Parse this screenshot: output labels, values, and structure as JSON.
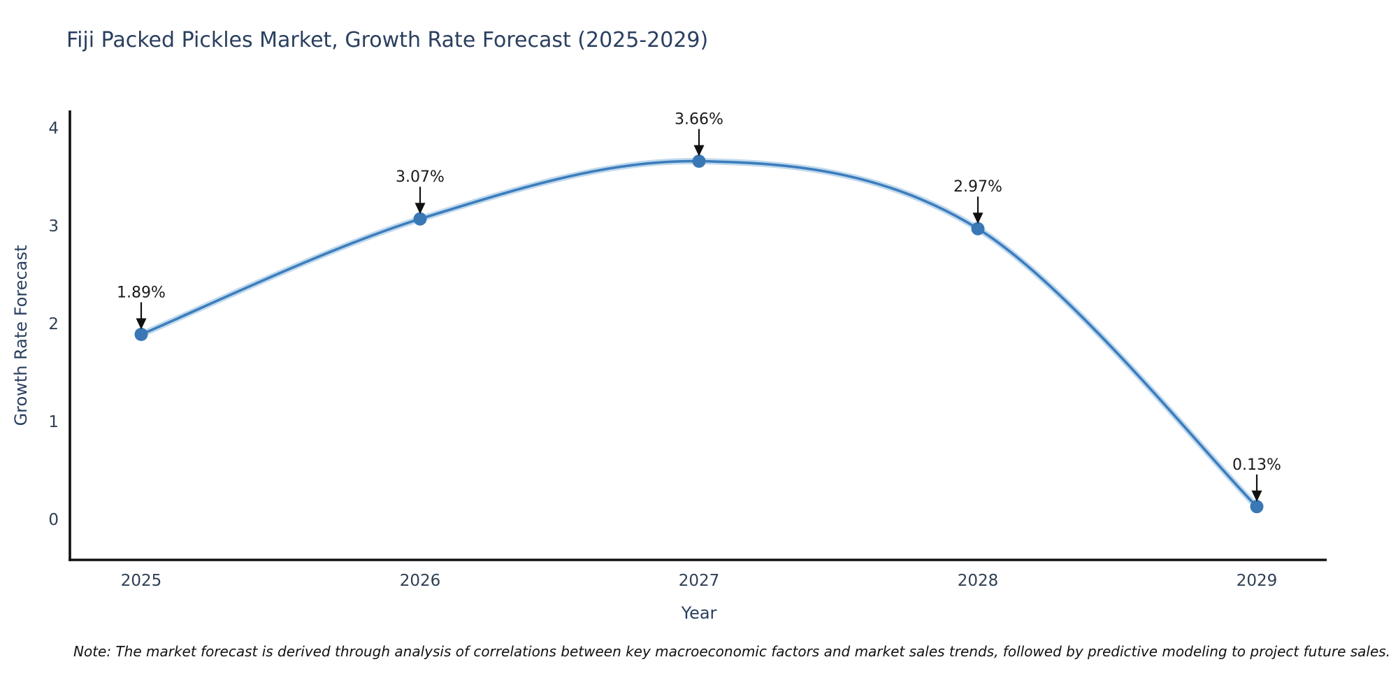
{
  "header": {
    "title": "Fiji Packed Pickles Market, Growth Rate Forecast (2025-2029)",
    "title_color": "#2a3f5f"
  },
  "chart_data": {
    "type": "line",
    "title": "Fiji Packed Pickles Market, Growth Rate Forecast (2025-2029)",
    "x": [
      2025,
      2026,
      2027,
      2028,
      2029
    ],
    "values": [
      1.89,
      3.07,
      3.66,
      2.97,
      0.13
    ],
    "point_labels": [
      "1.89%",
      "3.07%",
      "3.66%",
      "2.97%",
      "0.13%"
    ],
    "xticks": [
      "2025",
      "2026",
      "2027",
      "2028",
      "2029"
    ],
    "yticks": [
      0,
      1,
      2,
      3,
      4
    ],
    "xlabel": "Year",
    "ylabel": "Growth Rate Forecast",
    "ylim": [
      -0.4,
      4.2
    ],
    "grid": false,
    "legend": null,
    "annotation_style": "black-down-arrow-to-point",
    "line_color": "#3c7dbd",
    "line_glow_color": "#b9d5eb",
    "marker_color": "#3a78b5",
    "annotation_color": "#1a1a1a",
    "axis_color": "#111111",
    "tick_color": "#2f3f53"
  },
  "footer": {
    "note": "Note: The market forecast is derived through analysis of correlations between key macroeconomic factors and market sales trends, followed by predictive modeling to project future sales."
  }
}
